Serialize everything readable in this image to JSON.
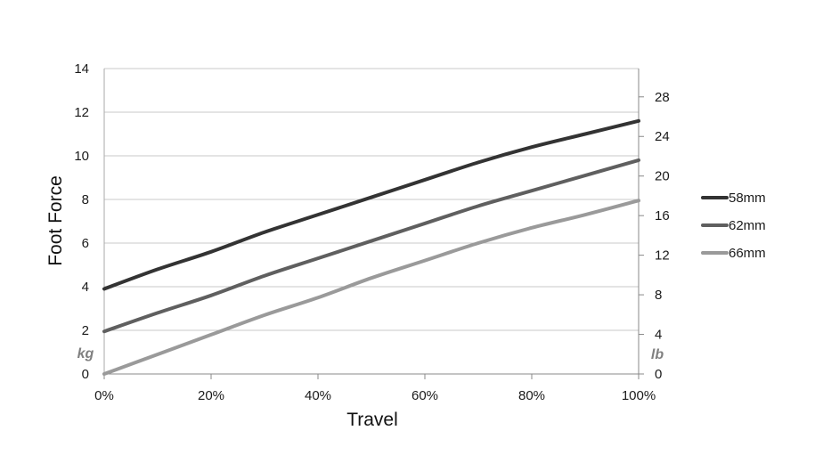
{
  "chart_data": {
    "type": "line",
    "title": "",
    "xlabel": "Travel",
    "ylabel": "Foot Force",
    "y_unit_left": "kg",
    "y_unit_right": "lb",
    "x_ticks": [
      "0%",
      "20%",
      "40%",
      "60%",
      "80%",
      "100%"
    ],
    "y_ticks_left": [
      "0",
      "2",
      "4",
      "6",
      "8",
      "10",
      "12",
      "14"
    ],
    "y_ticks_right": [
      "0",
      "4",
      "8",
      "12",
      "16",
      "20",
      "24",
      "28"
    ],
    "xlim": [
      0,
      100
    ],
    "ylim": [
      0,
      14
    ],
    "ylim_right": [
      0,
      30.86
    ],
    "grid": true,
    "legend_position": "right",
    "x": [
      0,
      10,
      20,
      30,
      40,
      50,
      60,
      70,
      80,
      90,
      100
    ],
    "series": [
      {
        "name": "58mm",
        "color": "#333333",
        "values": [
          3.9,
          4.8,
          5.6,
          6.5,
          7.3,
          8.1,
          8.9,
          9.7,
          10.4,
          11.0,
          11.6
        ]
      },
      {
        "name": "62mm",
        "color": "#5f5f5f",
        "values": [
          1.95,
          2.8,
          3.6,
          4.5,
          5.3,
          6.1,
          6.9,
          7.7,
          8.4,
          9.1,
          9.8
        ]
      },
      {
        "name": "66mm",
        "color": "#9a9a9a",
        "values": [
          0.0,
          0.9,
          1.8,
          2.7,
          3.5,
          4.4,
          5.2,
          6.0,
          6.7,
          7.3,
          7.95
        ]
      }
    ]
  }
}
